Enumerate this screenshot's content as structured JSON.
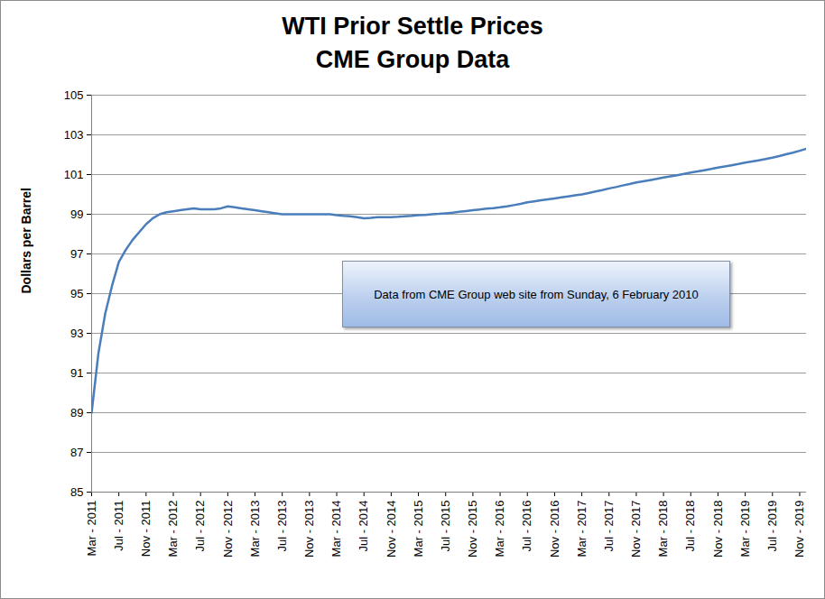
{
  "chart_data": {
    "type": "line",
    "title": "WTI Prior Settle Prices",
    "subtitle": "CME Group Data",
    "y_label": "Dollars per Barrel",
    "annotation": "Data from CME Group web site from Sunday, 6 February 2010",
    "color": "#4a7ebb",
    "grid": true,
    "ylim": [
      85,
      105
    ],
    "yticks": [
      85,
      87,
      89,
      91,
      93,
      95,
      97,
      99,
      101,
      103,
      105
    ],
    "categories": [
      "Mar - 2011",
      null,
      null,
      null,
      "Jul - 2011",
      null,
      null,
      null,
      "Nov - 2011",
      null,
      null,
      null,
      "Mar - 2012",
      null,
      null,
      null,
      "Jul - 2012",
      null,
      null,
      null,
      "Nov - 2012",
      null,
      null,
      null,
      "Mar - 2013",
      null,
      null,
      null,
      "Jul - 2013",
      null,
      null,
      null,
      "Nov - 2013",
      null,
      null,
      null,
      "Mar - 2014",
      null,
      null,
      null,
      "Jul - 2014",
      null,
      null,
      null,
      "Nov - 2014",
      null,
      null,
      null,
      "Mar - 2015",
      null,
      null,
      null,
      "Jul - 2015",
      null,
      null,
      null,
      "Nov - 2015",
      null,
      null,
      null,
      "Mar - 2016",
      null,
      null,
      null,
      "Jul - 2016",
      null,
      null,
      null,
      "Nov - 2016",
      null,
      null,
      null,
      "Mar - 2017",
      null,
      null,
      null,
      "Jul - 2017",
      null,
      null,
      null,
      "Nov - 2017",
      null,
      null,
      null,
      "Mar - 2018",
      null,
      null,
      null,
      "Jul - 2018",
      null,
      null,
      null,
      "Nov - 2018",
      null,
      null,
      null,
      "Mar - 2019",
      null,
      null,
      null,
      "Jul - 2019",
      null,
      null,
      null,
      "Nov - 2019",
      null
    ],
    "values": [
      89.0,
      92.0,
      94.0,
      95.4,
      96.6,
      97.2,
      97.7,
      98.1,
      98.5,
      98.8,
      99.0,
      99.1,
      99.15,
      99.2,
      99.25,
      99.3,
      99.25,
      99.25,
      99.25,
      99.3,
      99.4,
      99.35,
      99.3,
      99.25,
      99.2,
      99.15,
      99.1,
      99.05,
      99.0,
      99.0,
      99.0,
      99.0,
      99.0,
      99.0,
      99.0,
      99.0,
      98.95,
      98.92,
      98.9,
      98.85,
      98.8,
      98.82,
      98.85,
      98.85,
      98.85,
      98.87,
      98.9,
      98.92,
      98.95,
      98.97,
      99.0,
      99.02,
      99.05,
      99.08,
      99.12,
      99.16,
      99.2,
      99.24,
      99.28,
      99.31,
      99.35,
      99.4,
      99.46,
      99.52,
      99.6,
      99.65,
      99.7,
      99.75,
      99.8,
      99.85,
      99.9,
      99.95,
      100.0,
      100.07,
      100.15,
      100.22,
      100.3,
      100.37,
      100.45,
      100.52,
      100.6,
      100.66,
      100.72,
      100.78,
      100.85,
      100.91,
      100.97,
      101.03,
      101.1,
      101.16,
      101.22,
      101.28,
      101.35,
      101.41,
      101.47,
      101.53,
      101.6,
      101.66,
      101.72,
      101.78,
      101.85,
      101.93,
      102.02,
      102.1,
      102.2,
      102.3
    ]
  }
}
